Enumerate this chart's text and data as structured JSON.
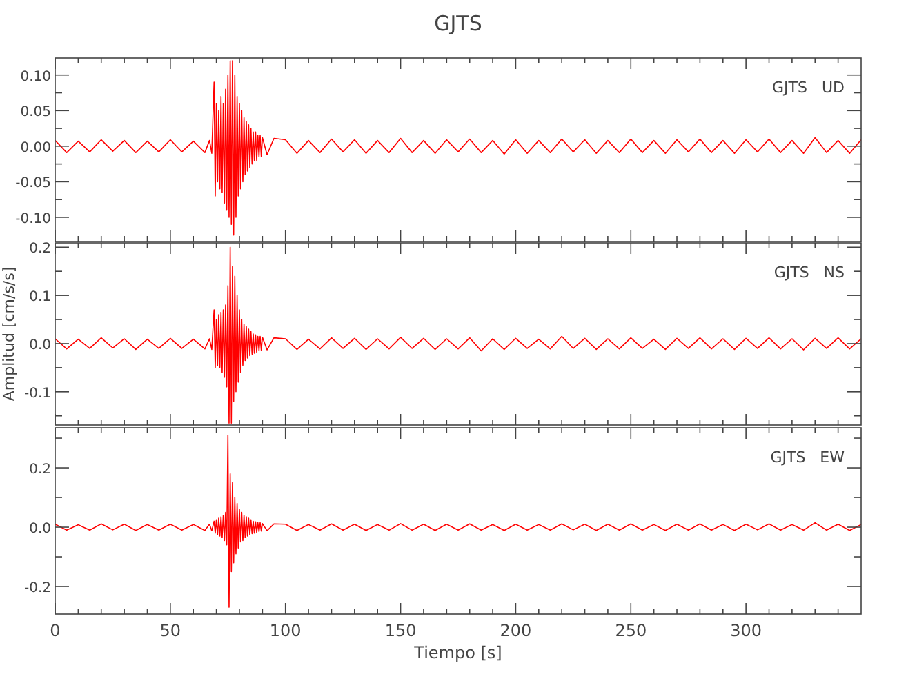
{
  "chart_data": [
    {
      "type": "line",
      "title": "GJTS",
      "annotations": [
        "GJTS   UD"
      ],
      "tick_labels": "y",
      "grid": false,
      "marker": "none",
      "line_style": "solid",
      "xlim": [
        0,
        350
      ],
      "xticks": [
        0,
        {
          "value": 10,
          "label": null
        },
        {
          "value": 20,
          "label": null
        },
        {
          "value": 30,
          "label": null
        },
        {
          "value": 40,
          "label": null
        },
        50,
        {
          "value": 60,
          "label": null
        },
        {
          "value": 70,
          "label": null
        },
        {
          "value": 80,
          "label": null
        },
        {
          "value": 90,
          "label": null
        },
        100,
        {
          "value": 110,
          "label": null
        },
        {
          "value": 120,
          "label": null
        },
        {
          "value": 130,
          "label": null
        },
        {
          "value": 140,
          "label": null
        },
        150,
        {
          "value": 160,
          "label": null
        },
        {
          "value": 170,
          "label": null
        },
        {
          "value": 180,
          "label": null
        },
        {
          "value": 190,
          "label": null
        },
        200,
        {
          "value": 210,
          "label": null
        },
        {
          "value": 220,
          "label": null
        },
        {
          "value": 230,
          "label": null
        },
        {
          "value": 240,
          "label": null
        },
        250,
        {
          "value": 260,
          "label": null
        },
        {
          "value": 270,
          "label": null
        },
        {
          "value": 280,
          "label": null
        },
        {
          "value": 290,
          "label": null
        },
        300,
        {
          "value": 310,
          "label": null
        },
        {
          "value": 320,
          "label": null
        },
        {
          "value": 330,
          "label": null
        },
        {
          "value": 340,
          "label": null
        }
      ],
      "ylim": [
        -0.134,
        0.124
      ],
      "yticks": [
        {
          "value": -0.1,
          "label": "-0.10"
        },
        {
          "value": -0.075,
          "label": null
        },
        {
          "value": -0.05,
          "label": "-0.05"
        },
        {
          "value": -0.025,
          "label": null
        },
        {
          "value": 0,
          "label": "0.00"
        },
        {
          "value": 0.025,
          "label": null
        },
        {
          "value": 0.05,
          "label": "0.05"
        },
        {
          "value": 0.075,
          "label": null
        },
        {
          "value": 0.1,
          "label": "0.10"
        }
      ],
      "x": [
        0,
        5,
        10,
        15,
        20,
        25,
        30,
        35,
        40,
        45,
        50,
        55,
        60,
        65,
        67,
        68,
        69,
        69.5,
        70,
        70.5,
        71,
        71.5,
        72,
        72.5,
        73,
        73.5,
        74,
        74.5,
        75,
        75.5,
        76,
        76.5,
        77,
        77.5,
        78,
        78.5,
        79,
        79.5,
        80,
        80.5,
        81,
        81.5,
        82,
        82.5,
        83,
        83.5,
        84,
        84.5,
        85,
        85.5,
        86,
        86.5,
        87,
        87.5,
        88,
        88.5,
        89,
        89.5,
        90,
        92,
        95,
        100,
        105,
        110,
        115,
        120,
        125,
        130,
        135,
        140,
        145,
        150,
        155,
        160,
        165,
        170,
        175,
        180,
        185,
        190,
        195,
        200,
        205,
        210,
        215,
        220,
        225,
        230,
        235,
        240,
        245,
        250,
        255,
        260,
        265,
        270,
        275,
        280,
        285,
        290,
        295,
        300,
        305,
        310,
        315,
        320,
        325,
        330,
        335,
        340,
        345,
        350
      ],
      "series": [
        {
          "color": "#ff0000",
          "values": [
            0.008,
            -0.009,
            0.007,
            -0.008,
            0.009,
            -0.007,
            0.008,
            -0.009,
            0.007,
            -0.008,
            0.009,
            -0.008,
            0.007,
            -0.009,
            0.008,
            -0.01,
            0.09,
            -0.07,
            0.06,
            -0.05,
            0.05,
            -0.06,
            0.07,
            -0.065,
            0.06,
            -0.08,
            0.08,
            -0.09,
            0.1,
            -0.1,
            0.12,
            -0.11,
            0.12,
            -0.125,
            0.1,
            -0.1,
            0.07,
            -0.07,
            0.06,
            -0.06,
            0.05,
            -0.05,
            0.04,
            -0.04,
            0.035,
            -0.035,
            0.03,
            -0.03,
            0.025,
            -0.025,
            0.02,
            -0.02,
            0.02,
            -0.02,
            0.015,
            -0.015,
            0.015,
            -0.015,
            0.012,
            -0.012,
            0.011,
            0.009,
            -0.01,
            0.008,
            -0.009,
            0.01,
            -0.008,
            0.009,
            -0.01,
            0.008,
            -0.009,
            0.011,
            -0.009,
            0.008,
            -0.01,
            0.009,
            -0.008,
            0.01,
            -0.009,
            0.008,
            -0.011,
            0.009,
            -0.01,
            0.008,
            -0.009,
            0.01,
            -0.008,
            0.009,
            -0.01,
            0.008,
            -0.009,
            0.01,
            -0.009,
            0.008,
            -0.01,
            0.009,
            -0.008,
            0.01,
            -0.009,
            0.008,
            -0.01,
            0.009,
            -0.008,
            0.01,
            -0.009,
            0.008,
            -0.01,
            0.012,
            -0.009,
            0.008,
            -0.01,
            0.009
          ]
        }
      ]
    },
    {
      "type": "line",
      "ylabel": "Amplitud [cm/s/s]",
      "annotations": [
        "GJTS   NS"
      ],
      "tick_labels": "y",
      "grid": false,
      "marker": "none",
      "line_style": "solid",
      "xlim": [
        0,
        350
      ],
      "xticks": [
        0,
        {
          "value": 10,
          "label": null
        },
        {
          "value": 20,
          "label": null
        },
        {
          "value": 30,
          "label": null
        },
        {
          "value": 40,
          "label": null
        },
        50,
        {
          "value": 60,
          "label": null
        },
        {
          "value": 70,
          "label": null
        },
        {
          "value": 80,
          "label": null
        },
        {
          "value": 90,
          "label": null
        },
        100,
        {
          "value": 110,
          "label": null
        },
        {
          "value": 120,
          "label": null
        },
        {
          "value": 130,
          "label": null
        },
        {
          "value": 140,
          "label": null
        },
        150,
        {
          "value": 160,
          "label": null
        },
        {
          "value": 170,
          "label": null
        },
        {
          "value": 180,
          "label": null
        },
        {
          "value": 190,
          "label": null
        },
        200,
        {
          "value": 210,
          "label": null
        },
        {
          "value": 220,
          "label": null
        },
        {
          "value": 230,
          "label": null
        },
        {
          "value": 240,
          "label": null
        },
        250,
        {
          "value": 260,
          "label": null
        },
        {
          "value": 270,
          "label": null
        },
        {
          "value": 280,
          "label": null
        },
        {
          "value": 290,
          "label": null
        },
        300,
        {
          "value": 310,
          "label": null
        },
        {
          "value": 320,
          "label": null
        },
        {
          "value": 330,
          "label": null
        },
        {
          "value": 340,
          "label": null
        }
      ],
      "ylim": [
        -0.169,
        0.209
      ],
      "yticks": [
        {
          "value": -0.15,
          "label": null
        },
        {
          "value": -0.1,
          "label": "-0.1"
        },
        {
          "value": -0.05,
          "label": null
        },
        {
          "value": 0,
          "label": "0.0"
        },
        {
          "value": 0.05,
          "label": null
        },
        {
          "value": 0.1,
          "label": "0.1"
        },
        {
          "value": 0.15,
          "label": null
        },
        {
          "value": 0.2,
          "label": "0.2"
        }
      ],
      "x": [
        0,
        5,
        10,
        15,
        20,
        25,
        30,
        35,
        40,
        45,
        50,
        55,
        60,
        65,
        67,
        68,
        69,
        69.5,
        70,
        70.5,
        71,
        71.5,
        72,
        72.5,
        73,
        73.5,
        74,
        74.5,
        75,
        75.5,
        76,
        76.5,
        77,
        77.5,
        78,
        78.5,
        79,
        79.5,
        80,
        80.5,
        81,
        81.5,
        82,
        82.5,
        83,
        83.5,
        84,
        84.5,
        85,
        85.5,
        86,
        86.5,
        87,
        87.5,
        88,
        88.5,
        89,
        89.5,
        90,
        92,
        95,
        100,
        105,
        110,
        115,
        120,
        125,
        130,
        135,
        140,
        145,
        150,
        155,
        160,
        165,
        170,
        175,
        180,
        185,
        190,
        195,
        200,
        205,
        210,
        215,
        220,
        225,
        230,
        235,
        240,
        245,
        250,
        255,
        260,
        265,
        270,
        275,
        280,
        285,
        290,
        295,
        300,
        305,
        310,
        315,
        320,
        325,
        330,
        335,
        340,
        345,
        350
      ],
      "series": [
        {
          "color": "#ff0000",
          "values": [
            0.01,
            -0.011,
            0.009,
            -0.01,
            0.012,
            -0.009,
            0.01,
            -0.012,
            0.009,
            -0.01,
            0.011,
            -0.01,
            0.009,
            -0.011,
            0.01,
            -0.012,
            0.07,
            -0.05,
            0.05,
            -0.045,
            0.06,
            -0.05,
            0.065,
            -0.06,
            0.07,
            -0.07,
            0.08,
            -0.09,
            0.12,
            -0.165,
            0.2,
            -0.165,
            0.16,
            -0.12,
            0.14,
            -0.1,
            0.1,
            -0.08,
            0.07,
            -0.06,
            0.05,
            -0.045,
            0.04,
            -0.035,
            0.035,
            -0.03,
            0.03,
            -0.025,
            0.025,
            -0.022,
            0.02,
            -0.02,
            0.018,
            -0.018,
            0.015,
            -0.015,
            0.015,
            -0.014,
            0.013,
            -0.013,
            0.012,
            0.01,
            -0.012,
            0.009,
            -0.011,
            0.012,
            -0.01,
            0.011,
            -0.012,
            0.01,
            -0.011,
            0.013,
            -0.01,
            0.011,
            -0.012,
            0.01,
            -0.011,
            0.012,
            -0.015,
            0.01,
            -0.012,
            0.011,
            -0.01,
            0.009,
            -0.011,
            0.015,
            -0.01,
            0.011,
            -0.012,
            0.01,
            -0.011,
            0.012,
            -0.01,
            0.009,
            -0.012,
            0.011,
            -0.01,
            0.012,
            -0.011,
            0.01,
            -0.012,
            0.011,
            -0.01,
            0.012,
            -0.011,
            0.01,
            -0.013,
            0.011,
            -0.01,
            0.012,
            -0.011,
            0.01
          ]
        }
      ]
    },
    {
      "type": "line",
      "xlabel": "Tiempo [s]",
      "annotations": [
        "GJTS   EW"
      ],
      "grid": false,
      "marker": "none",
      "line_style": "solid",
      "xlim": [
        0,
        350
      ],
      "xticks": [
        0,
        {
          "value": 10,
          "label": null
        },
        {
          "value": 20,
          "label": null
        },
        {
          "value": 30,
          "label": null
        },
        {
          "value": 40,
          "label": null
        },
        50,
        {
          "value": 60,
          "label": null
        },
        {
          "value": 70,
          "label": null
        },
        {
          "value": 80,
          "label": null
        },
        {
          "value": 90,
          "label": null
        },
        100,
        {
          "value": 110,
          "label": null
        },
        {
          "value": 120,
          "label": null
        },
        {
          "value": 130,
          "label": null
        },
        {
          "value": 140,
          "label": null
        },
        150,
        {
          "value": 160,
          "label": null
        },
        {
          "value": 170,
          "label": null
        },
        {
          "value": 180,
          "label": null
        },
        {
          "value": 190,
          "label": null
        },
        200,
        {
          "value": 210,
          "label": null
        },
        {
          "value": 220,
          "label": null
        },
        {
          "value": 230,
          "label": null
        },
        {
          "value": 240,
          "label": null
        },
        250,
        {
          "value": 260,
          "label": null
        },
        {
          "value": 270,
          "label": null
        },
        {
          "value": 280,
          "label": null
        },
        {
          "value": 290,
          "label": null
        },
        300,
        {
          "value": 310,
          "label": null
        },
        {
          "value": 320,
          "label": null
        },
        {
          "value": 330,
          "label": null
        },
        {
          "value": 340,
          "label": null
        }
      ],
      "ylim": [
        -0.293,
        0.335
      ],
      "yticks": [
        {
          "value": -0.2,
          "label": "-0.2"
        },
        {
          "value": -0.1,
          "label": null
        },
        {
          "value": 0,
          "label": "0.0"
        },
        {
          "value": 0.1,
          "label": null
        },
        {
          "value": 0.2,
          "label": "0.2"
        },
        {
          "value": 0.3,
          "label": null
        }
      ],
      "x": [
        0,
        5,
        10,
        15,
        20,
        25,
        30,
        35,
        40,
        45,
        50,
        55,
        60,
        65,
        67,
        68,
        69,
        69.5,
        70,
        70.5,
        71,
        71.5,
        72,
        72.5,
        73,
        73.5,
        74,
        74.5,
        75,
        75.5,
        76,
        76.5,
        77,
        77.5,
        78,
        78.5,
        79,
        79.5,
        80,
        80.5,
        81,
        81.5,
        82,
        82.5,
        83,
        83.5,
        84,
        84.5,
        85,
        85.5,
        86,
        86.5,
        87,
        87.5,
        88,
        88.5,
        89,
        89.5,
        90,
        92,
        95,
        100,
        105,
        110,
        115,
        120,
        125,
        130,
        135,
        140,
        145,
        150,
        155,
        160,
        165,
        170,
        175,
        180,
        185,
        190,
        195,
        200,
        205,
        210,
        215,
        220,
        225,
        230,
        235,
        240,
        245,
        250,
        255,
        260,
        265,
        270,
        275,
        280,
        285,
        290,
        295,
        300,
        305,
        310,
        315,
        320,
        325,
        330,
        335,
        340,
        345,
        350
      ],
      "series": [
        {
          "color": "#ff0000",
          "values": [
            0.01,
            -0.01,
            0.008,
            -0.01,
            0.011,
            -0.009,
            0.01,
            -0.011,
            0.009,
            -0.01,
            0.01,
            -0.01,
            0.009,
            -0.011,
            0.01,
            -0.012,
            0.02,
            -0.02,
            0.025,
            -0.025,
            0.03,
            -0.03,
            0.035,
            -0.035,
            0.04,
            -0.045,
            0.05,
            -0.06,
            0.31,
            -0.27,
            0.18,
            -0.15,
            0.15,
            -0.12,
            0.1,
            -0.09,
            0.08,
            -0.07,
            0.06,
            -0.05,
            0.05,
            -0.045,
            0.04,
            -0.035,
            0.035,
            -0.03,
            0.03,
            -0.025,
            0.025,
            -0.022,
            0.02,
            -0.02,
            0.018,
            -0.018,
            0.015,
            -0.015,
            0.015,
            -0.013,
            0.012,
            -0.012,
            0.011,
            0.01,
            -0.011,
            0.009,
            -0.01,
            0.011,
            -0.01,
            0.01,
            -0.011,
            0.009,
            -0.01,
            0.012,
            -0.01,
            0.01,
            -0.011,
            0.01,
            -0.01,
            0.011,
            -0.01,
            0.009,
            -0.011,
            0.01,
            -0.01,
            0.009,
            -0.01,
            0.011,
            -0.009,
            0.01,
            -0.011,
            0.01,
            -0.01,
            0.011,
            -0.01,
            0.009,
            -0.011,
            0.01,
            -0.01,
            0.011,
            -0.01,
            0.009,
            -0.011,
            0.01,
            -0.009,
            0.011,
            -0.01,
            0.009,
            -0.01,
            0.015,
            -0.01,
            0.01,
            -0.011,
            0.009
          ]
        }
      ]
    }
  ]
}
